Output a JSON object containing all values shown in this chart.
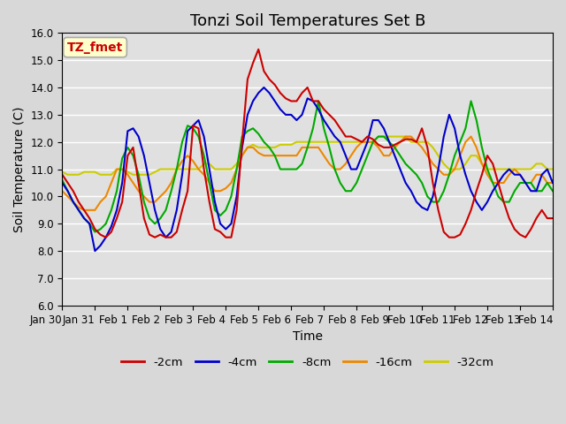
{
  "title": "Tonzi Soil Temperatures Set B",
  "xlabel": "Time",
  "ylabel": "Soil Temperature (C)",
  "ylim": [
    6.0,
    16.0
  ],
  "yticks": [
    6.0,
    7.0,
    8.0,
    9.0,
    10.0,
    11.0,
    12.0,
    13.0,
    14.0,
    15.0,
    16.0
  ],
  "fig_facecolor": "#d8d8d8",
  "ax_facecolor": "#e0e0e0",
  "annotation_label": "TZ_fmet",
  "annotation_color": "#cc0000",
  "annotation_bg": "#ffffcc",
  "annotation_edge": "#aaaaaa",
  "grid_color": "#ffffff",
  "series": {
    "2cm": {
      "color": "#cc0000",
      "label": "-2cm",
      "x": [
        0,
        0.167,
        0.333,
        0.5,
        0.667,
        0.833,
        1,
        1.167,
        1.333,
        1.5,
        1.667,
        1.833,
        2,
        2.167,
        2.333,
        2.5,
        2.667,
        2.833,
        3,
        3.167,
        3.333,
        3.5,
        3.667,
        3.833,
        4,
        4.167,
        4.333,
        4.5,
        4.667,
        4.833,
        5,
        5.167,
        5.333,
        5.5,
        5.667,
        5.833,
        6,
        6.167,
        6.333,
        6.5,
        6.667,
        6.833,
        7,
        7.167,
        7.333,
        7.5,
        7.667,
        7.833,
        8,
        8.167,
        8.333,
        8.5,
        8.667,
        8.833,
        9,
        9.167,
        9.333,
        9.5,
        9.667,
        9.833,
        10,
        10.167,
        10.333,
        10.5,
        10.667,
        10.833,
        11,
        11.167,
        11.333,
        11.5,
        11.667,
        11.833,
        12,
        12.167,
        12.333,
        12.5,
        12.667,
        12.833,
        13,
        13.167,
        13.333,
        13.5,
        13.667,
        13.833,
        14,
        14.167,
        14.333,
        14.5,
        14.667,
        14.833,
        15
      ],
      "y": [
        10.8,
        10.5,
        10.2,
        9.8,
        9.5,
        9.2,
        8.8,
        8.6,
        8.5,
        8.7,
        9.2,
        9.8,
        11.5,
        11.8,
        10.5,
        9.2,
        8.6,
        8.5,
        8.6,
        8.5,
        8.5,
        8.7,
        9.5,
        10.2,
        12.6,
        12.5,
        11.0,
        9.8,
        8.8,
        8.7,
        8.5,
        8.5,
        9.5,
        12.0,
        14.3,
        14.9,
        15.4,
        14.6,
        14.3,
        14.1,
        13.8,
        13.6,
        13.5,
        13.5,
        13.8,
        14.0,
        13.5,
        13.5,
        13.2,
        13.0,
        12.8,
        12.5,
        12.2,
        12.2,
        12.1,
        12.0,
        12.2,
        12.1,
        11.9,
        11.8,
        11.8,
        11.9,
        12.0,
        12.1,
        12.1,
        12.0,
        12.5,
        11.8,
        10.5,
        9.5,
        8.7,
        8.5,
        8.5,
        8.6,
        9.0,
        9.5,
        10.2,
        10.8,
        11.5,
        11.2,
        10.5,
        9.8,
        9.2,
        8.8,
        8.6,
        8.5,
        8.8,
        9.2,
        9.5,
        9.2,
        9.2
      ]
    },
    "4cm": {
      "color": "#0000cc",
      "label": "-4cm",
      "x": [
        0,
        0.167,
        0.333,
        0.5,
        0.667,
        0.833,
        1,
        1.167,
        1.333,
        1.5,
        1.667,
        1.833,
        2,
        2.167,
        2.333,
        2.5,
        2.667,
        2.833,
        3,
        3.167,
        3.333,
        3.5,
        3.667,
        3.833,
        4,
        4.167,
        4.333,
        4.5,
        4.667,
        4.833,
        5,
        5.167,
        5.333,
        5.5,
        5.667,
        5.833,
        6,
        6.167,
        6.333,
        6.5,
        6.667,
        6.833,
        7,
        7.167,
        7.333,
        7.5,
        7.667,
        7.833,
        8,
        8.167,
        8.333,
        8.5,
        8.667,
        8.833,
        9,
        9.167,
        9.333,
        9.5,
        9.667,
        9.833,
        10,
        10.167,
        10.333,
        10.5,
        10.667,
        10.833,
        11,
        11.167,
        11.333,
        11.5,
        11.667,
        11.833,
        12,
        12.167,
        12.333,
        12.5,
        12.667,
        12.833,
        13,
        13.167,
        13.333,
        13.5,
        13.667,
        13.833,
        14,
        14.167,
        14.333,
        14.5,
        14.667,
        14.833,
        15
      ],
      "y": [
        10.5,
        10.2,
        9.8,
        9.5,
        9.2,
        9.0,
        8.0,
        8.2,
        8.5,
        8.9,
        9.5,
        10.5,
        12.4,
        12.5,
        12.2,
        11.5,
        10.5,
        9.5,
        8.8,
        8.5,
        8.7,
        9.5,
        10.8,
        12.4,
        12.6,
        12.8,
        12.2,
        11.0,
        9.8,
        9.0,
        8.8,
        9.0,
        10.0,
        11.8,
        13.0,
        13.5,
        13.8,
        14.0,
        13.8,
        13.5,
        13.2,
        13.0,
        13.0,
        12.8,
        13.0,
        13.6,
        13.5,
        13.2,
        12.8,
        12.5,
        12.2,
        12.0,
        11.5,
        11.0,
        11.0,
        11.5,
        12.0,
        12.8,
        12.8,
        12.5,
        12.0,
        11.5,
        11.0,
        10.5,
        10.2,
        9.8,
        9.6,
        9.5,
        10.0,
        11.0,
        12.2,
        13.0,
        12.5,
        11.5,
        10.8,
        10.2,
        9.8,
        9.5,
        9.8,
        10.2,
        10.5,
        10.8,
        11.0,
        10.8,
        10.8,
        10.5,
        10.2,
        10.2,
        10.8,
        11.0,
        10.5
      ]
    },
    "8cm": {
      "color": "#00aa00",
      "label": "-8cm",
      "x": [
        0,
        0.167,
        0.333,
        0.5,
        0.667,
        0.833,
        1,
        1.167,
        1.333,
        1.5,
        1.667,
        1.833,
        2,
        2.167,
        2.333,
        2.5,
        2.667,
        2.833,
        3,
        3.167,
        3.333,
        3.5,
        3.667,
        3.833,
        4,
        4.167,
        4.333,
        4.5,
        4.667,
        4.833,
        5,
        5.167,
        5.333,
        5.5,
        5.667,
        5.833,
        6,
        6.167,
        6.333,
        6.5,
        6.667,
        6.833,
        7,
        7.167,
        7.333,
        7.5,
        7.667,
        7.833,
        8,
        8.167,
        8.333,
        8.5,
        8.667,
        8.833,
        9,
        9.167,
        9.333,
        9.5,
        9.667,
        9.833,
        10,
        10.167,
        10.333,
        10.5,
        10.667,
        10.833,
        11,
        11.167,
        11.333,
        11.5,
        11.667,
        11.833,
        12,
        12.167,
        12.333,
        12.5,
        12.667,
        12.833,
        13,
        13.167,
        13.333,
        13.5,
        13.667,
        13.833,
        14,
        14.167,
        14.333,
        14.5,
        14.667,
        14.833,
        15
      ],
      "y": [
        10.6,
        10.2,
        9.8,
        9.5,
        9.2,
        9.0,
        8.7,
        8.8,
        9.0,
        9.5,
        10.2,
        11.4,
        11.8,
        11.5,
        10.8,
        9.8,
        9.2,
        9.0,
        9.2,
        9.5,
        10.2,
        11.0,
        12.0,
        12.6,
        12.5,
        12.2,
        11.5,
        10.5,
        9.5,
        9.3,
        9.5,
        10.0,
        11.0,
        12.2,
        12.4,
        12.5,
        12.3,
        12.0,
        11.8,
        11.5,
        11.0,
        11.0,
        11.0,
        11.0,
        11.2,
        11.8,
        12.5,
        13.5,
        12.5,
        11.8,
        11.0,
        10.5,
        10.2,
        10.2,
        10.5,
        11.0,
        11.5,
        12.0,
        12.2,
        12.2,
        12.0,
        11.8,
        11.5,
        11.2,
        11.0,
        10.8,
        10.5,
        10.0,
        9.8,
        9.8,
        10.2,
        10.8,
        11.5,
        12.0,
        12.5,
        13.5,
        12.8,
        11.8,
        11.0,
        10.5,
        10.0,
        9.8,
        9.8,
        10.2,
        10.5,
        10.5,
        10.5,
        10.2,
        10.2,
        10.5,
        10.2
      ]
    },
    "16cm": {
      "color": "#ee8800",
      "label": "-16cm",
      "x": [
        0,
        0.167,
        0.333,
        0.5,
        0.667,
        0.833,
        1,
        1.167,
        1.333,
        1.5,
        1.667,
        1.833,
        2,
        2.167,
        2.333,
        2.5,
        2.667,
        2.833,
        3,
        3.167,
        3.333,
        3.5,
        3.667,
        3.833,
        4,
        4.167,
        4.333,
        4.5,
        4.667,
        4.833,
        5,
        5.167,
        5.333,
        5.5,
        5.667,
        5.833,
        6,
        6.167,
        6.333,
        6.5,
        6.667,
        6.833,
        7,
        7.167,
        7.333,
        7.5,
        7.667,
        7.833,
        8,
        8.167,
        8.333,
        8.5,
        8.667,
        8.833,
        9,
        9.167,
        9.333,
        9.5,
        9.667,
        9.833,
        10,
        10.167,
        10.333,
        10.5,
        10.667,
        10.833,
        11,
        11.167,
        11.333,
        11.5,
        11.667,
        11.833,
        12,
        12.167,
        12.333,
        12.5,
        12.667,
        12.833,
        13,
        13.167,
        13.333,
        13.5,
        13.667,
        13.833,
        14,
        14.167,
        14.333,
        14.5,
        14.667,
        14.833,
        15
      ],
      "y": [
        10.2,
        10.0,
        9.8,
        9.6,
        9.5,
        9.5,
        9.5,
        9.8,
        10.0,
        10.5,
        11.0,
        11.0,
        10.8,
        10.5,
        10.2,
        10.0,
        9.8,
        9.8,
        10.0,
        10.2,
        10.5,
        11.0,
        11.3,
        11.5,
        11.3,
        11.0,
        10.8,
        10.5,
        10.2,
        10.2,
        10.3,
        10.5,
        11.0,
        11.5,
        11.8,
        11.8,
        11.6,
        11.5,
        11.5,
        11.5,
        11.5,
        11.5,
        11.5,
        11.5,
        11.8,
        11.8,
        11.8,
        11.8,
        11.5,
        11.2,
        11.0,
        11.0,
        11.2,
        11.5,
        11.8,
        12.0,
        12.0,
        12.0,
        11.8,
        11.5,
        11.5,
        11.8,
        12.0,
        12.2,
        12.2,
        12.0,
        11.8,
        11.5,
        11.2,
        11.0,
        10.8,
        10.8,
        11.0,
        11.5,
        12.0,
        12.2,
        11.8,
        11.2,
        10.8,
        10.5,
        10.5,
        10.5,
        10.8,
        11.0,
        10.8,
        10.5,
        10.5,
        10.8,
        10.8,
        10.5,
        10.5
      ]
    },
    "32cm": {
      "color": "#cccc00",
      "label": "-32cm",
      "x": [
        0,
        0.167,
        0.333,
        0.5,
        0.667,
        0.833,
        1,
        1.167,
        1.333,
        1.5,
        1.667,
        1.833,
        2,
        2.167,
        2.333,
        2.5,
        2.667,
        2.833,
        3,
        3.167,
        3.333,
        3.5,
        3.667,
        3.833,
        4,
        4.167,
        4.333,
        4.5,
        4.667,
        4.833,
        5,
        5.167,
        5.333,
        5.5,
        5.667,
        5.833,
        6,
        6.167,
        6.333,
        6.5,
        6.667,
        6.833,
        7,
        7.167,
        7.333,
        7.5,
        7.667,
        7.833,
        8,
        8.167,
        8.333,
        8.5,
        8.667,
        8.833,
        9,
        9.167,
        9.333,
        9.5,
        9.667,
        9.833,
        10,
        10.167,
        10.333,
        10.5,
        10.667,
        10.833,
        11,
        11.167,
        11.333,
        11.5,
        11.667,
        11.833,
        12,
        12.167,
        12.333,
        12.5,
        12.667,
        12.833,
        13,
        13.167,
        13.333,
        13.5,
        13.667,
        13.833,
        14,
        14.167,
        14.333,
        14.5,
        14.667,
        14.833,
        15
      ],
      "y": [
        10.9,
        10.8,
        10.8,
        10.8,
        10.9,
        10.9,
        10.9,
        10.8,
        10.8,
        10.8,
        11.0,
        11.0,
        10.9,
        10.8,
        10.8,
        10.8,
        10.8,
        10.9,
        11.0,
        11.0,
        11.0,
        11.0,
        11.0,
        11.0,
        11.0,
        11.0,
        11.2,
        11.2,
        11.0,
        11.0,
        11.0,
        11.0,
        11.2,
        11.5,
        11.8,
        11.9,
        11.8,
        11.8,
        11.8,
        11.8,
        11.9,
        11.9,
        11.9,
        12.0,
        12.0,
        12.0,
        12.0,
        12.0,
        12.0,
        12.0,
        12.0,
        12.0,
        12.0,
        12.0,
        12.0,
        12.0,
        12.0,
        12.0,
        12.2,
        12.2,
        12.2,
        12.2,
        12.2,
        12.2,
        12.0,
        12.0,
        12.0,
        12.0,
        11.8,
        11.5,
        11.2,
        11.0,
        11.0,
        11.0,
        11.2,
        11.5,
        11.5,
        11.2,
        11.0,
        11.0,
        11.0,
        11.0,
        11.0,
        11.0,
        11.0,
        11.0,
        11.0,
        11.2,
        11.2,
        11.0,
        11.0
      ]
    }
  },
  "xtick_positions": [
    0,
    1,
    2,
    3,
    4,
    5,
    6,
    7,
    8,
    9,
    10,
    11,
    12,
    13,
    14,
    15
  ],
  "xtick_labels": [
    "Jan 30",
    "Jan 31",
    "Feb 1",
    "Feb 2",
    "Feb 3",
    "Feb 4",
    "Feb 5",
    "Feb 6",
    "Feb 7",
    "Feb 8",
    "Feb 9",
    "Feb 10",
    "Feb 11",
    "Feb 12",
    "Feb 13",
    "Feb 14"
  ],
  "title_fontsize": 13,
  "axis_fontsize": 10,
  "tick_fontsize": 8.5,
  "legend_fontsize": 9.5
}
